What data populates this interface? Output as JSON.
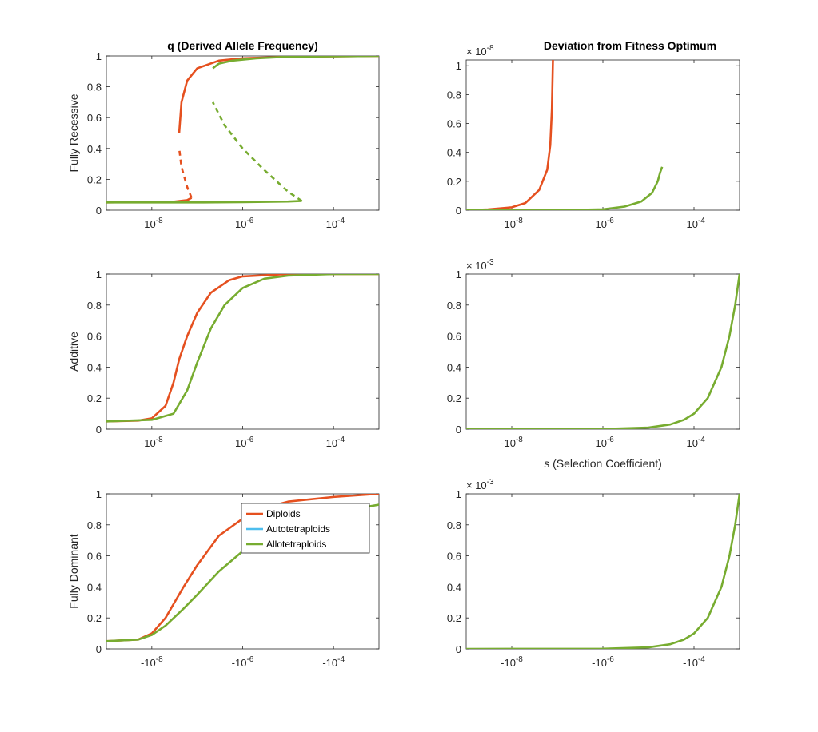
{
  "colors": {
    "diploids": "#e5501f",
    "autotetraploids": "#4dbeee",
    "allotetraploids": "#77ac30"
  },
  "chart_data": [
    {
      "type": "line",
      "panel": "left-row1",
      "title": "q (Derived Allele Frequency)",
      "ylabel": "Fully Recessive",
      "x_scale": "symlog-negative",
      "xlim": [
        -1e-09,
        -0.001
      ],
      "ylim": [
        0,
        1
      ],
      "xticks": [
        -1e-08,
        -1e-06,
        -0.0001
      ],
      "xtick_labels": [
        "-10",
        "-10",
        "-10"
      ],
      "xtick_exp": [
        "-8",
        "-6",
        "-4"
      ],
      "yticks": [
        0,
        0.2,
        0.4,
        0.6,
        0.8,
        1
      ],
      "ytick_labels": [
        "0",
        "0.2",
        "0.4",
        "0.6",
        "0.8",
        "1"
      ],
      "series": [
        {
          "name": "Diploids",
          "color": "#e5501f",
          "style": "solid",
          "points": [
            [
              -1e-09,
              0.05
            ],
            [
              -3e-08,
              0.055
            ],
            [
              -6e-08,
              0.065
            ],
            [
              -7.5e-08,
              0.08
            ]
          ]
        },
        {
          "name": "Diploids",
          "color": "#e5501f",
          "style": "dashed",
          "points": [
            [
              -7.5e-08,
              0.08
            ],
            [
              -6e-08,
              0.15
            ],
            [
              -4.5e-08,
              0.28
            ],
            [
              -4e-08,
              0.4
            ]
          ]
        },
        {
          "name": "Diploids",
          "color": "#e5501f",
          "style": "solid",
          "points": [
            [
              -4e-08,
              0.5
            ],
            [
              -4.5e-08,
              0.7
            ],
            [
              -6e-08,
              0.84
            ],
            [
              -1e-07,
              0.92
            ],
            [
              -3e-07,
              0.97
            ],
            [
              -1e-06,
              0.985
            ],
            [
              -1e-05,
              0.995
            ],
            [
              -0.001,
              1.0
            ]
          ]
        },
        {
          "name": "Allotetraploids",
          "color": "#77ac30",
          "style": "solid",
          "points": [
            [
              -1e-09,
              0.05
            ],
            [
              -1e-07,
              0.05
            ],
            [
              -1e-06,
              0.052
            ],
            [
              -1e-05,
              0.056
            ],
            [
              -2e-05,
              0.06
            ]
          ]
        },
        {
          "name": "Allotetraploids",
          "color": "#77ac30",
          "style": "dashed",
          "points": [
            [
              -2e-05,
              0.06
            ],
            [
              -1e-05,
              0.12
            ],
            [
              -3e-06,
              0.26
            ],
            [
              -1e-06,
              0.4
            ],
            [
              -4e-07,
              0.55
            ],
            [
              -2.2e-07,
              0.7
            ]
          ]
        },
        {
          "name": "Allotetraploids",
          "color": "#77ac30",
          "style": "solid",
          "points": [
            [
              -2.2e-07,
              0.92
            ],
            [
              -3e-07,
              0.95
            ],
            [
              -6e-07,
              0.97
            ],
            [
              -2e-06,
              0.985
            ],
            [
              -1e-05,
              0.995
            ],
            [
              -0.001,
              1.0
            ]
          ]
        }
      ]
    },
    {
      "type": "line",
      "panel": "right-row1",
      "title": "Deviation from Fitness Optimum",
      "ylabel": "",
      "x_scale": "symlog-negative",
      "xlim": [
        -1e-09,
        -0.001
      ],
      "ylim": [
        0,
        1.04
      ],
      "y_multiplier": "× 10",
      "y_multiplier_exp": "-8",
      "xticks": [
        -1e-08,
        -1e-06,
        -0.0001
      ],
      "xtick_labels": [
        "-10",
        "-10",
        "-10"
      ],
      "xtick_exp": [
        "-8",
        "-6",
        "-4"
      ],
      "yticks": [
        0,
        0.2,
        0.4,
        0.6,
        0.8,
        1
      ],
      "ytick_labels": [
        "0",
        "0.2",
        "0.4",
        "0.6",
        "0.8",
        "1"
      ],
      "series": [
        {
          "name": "Diploids",
          "color": "#e5501f",
          "style": "solid",
          "points": [
            [
              -1e-09,
              0.0
            ],
            [
              -3e-09,
              0.005
            ],
            [
              -1e-08,
              0.02
            ],
            [
              -2e-08,
              0.05
            ],
            [
              -4e-08,
              0.14
            ],
            [
              -6e-08,
              0.28
            ],
            [
              -7e-08,
              0.45
            ],
            [
              -7.6e-08,
              0.7
            ],
            [
              -8e-08,
              1.04
            ]
          ]
        },
        {
          "name": "Allotetraploids",
          "color": "#77ac30",
          "style": "solid",
          "points": [
            [
              -1e-09,
              0.0
            ],
            [
              -1e-07,
              0.0
            ],
            [
              -1e-06,
              0.006
            ],
            [
              -3e-06,
              0.025
            ],
            [
              -7e-06,
              0.06
            ],
            [
              -1.2e-05,
              0.12
            ],
            [
              -1.6e-05,
              0.2
            ],
            [
              -1.8e-05,
              0.26
            ],
            [
              -2e-05,
              0.3
            ]
          ]
        }
      ]
    },
    {
      "type": "line",
      "panel": "left-row2",
      "title": "",
      "ylabel": "Additive",
      "x_scale": "symlog-negative",
      "xlim": [
        -1e-09,
        -0.001
      ],
      "ylim": [
        0,
        1
      ],
      "xticks": [
        -1e-08,
        -1e-06,
        -0.0001
      ],
      "xtick_labels": [
        "-10",
        "-10",
        "-10"
      ],
      "xtick_exp": [
        "-8",
        "-6",
        "-4"
      ],
      "yticks": [
        0,
        0.2,
        0.4,
        0.6,
        0.8,
        1
      ],
      "ytick_labels": [
        "0",
        "0.2",
        "0.4",
        "0.6",
        "0.8",
        "1"
      ],
      "series": [
        {
          "name": "Diploids",
          "color": "#e5501f",
          "style": "solid",
          "points": [
            [
              -1e-09,
              0.05
            ],
            [
              -5e-09,
              0.055
            ],
            [
              -1e-08,
              0.07
            ],
            [
              -2e-08,
              0.15
            ],
            [
              -3e-08,
              0.3
            ],
            [
              -4e-08,
              0.45
            ],
            [
              -6e-08,
              0.6
            ],
            [
              -1e-07,
              0.75
            ],
            [
              -2e-07,
              0.88
            ],
            [
              -5e-07,
              0.96
            ],
            [
              -1e-06,
              0.985
            ],
            [
              -1e-05,
              1.0
            ],
            [
              -0.001,
              1.0
            ]
          ]
        },
        {
          "name": "Allotetraploids",
          "color": "#77ac30",
          "style": "solid",
          "points": [
            [
              -1e-09,
              0.05
            ],
            [
              -1e-08,
              0.06
            ],
            [
              -3e-08,
              0.1
            ],
            [
              -6e-08,
              0.25
            ],
            [
              -1e-07,
              0.43
            ],
            [
              -2e-07,
              0.65
            ],
            [
              -4e-07,
              0.8
            ],
            [
              -1e-06,
              0.91
            ],
            [
              -3e-06,
              0.97
            ],
            [
              -1e-05,
              0.99
            ],
            [
              -0.0001,
              1.0
            ],
            [
              -0.001,
              1.0
            ]
          ]
        }
      ]
    },
    {
      "type": "line",
      "panel": "right-row2",
      "title": "",
      "ylabel": "",
      "xlabel": "s (Selection Coefficient)",
      "x_scale": "symlog-negative",
      "xlim": [
        -1e-09,
        -0.001
      ],
      "ylim": [
        0,
        1
      ],
      "y_multiplier": "× 10",
      "y_multiplier_exp": "-3",
      "xticks": [
        -1e-08,
        -1e-06,
        -0.0001
      ],
      "xtick_labels": [
        "-10",
        "-10",
        "-10"
      ],
      "xtick_exp": [
        "-8",
        "-6",
        "-4"
      ],
      "yticks": [
        0,
        0.2,
        0.4,
        0.6,
        0.8,
        1
      ],
      "ytick_labels": [
        "0",
        "0.2",
        "0.4",
        "0.6",
        "0.8",
        "1"
      ],
      "series": [
        {
          "name": "Allotetraploids",
          "color": "#77ac30",
          "style": "solid",
          "points": [
            [
              -1e-09,
              0.0
            ],
            [
              -1e-06,
              0.001
            ],
            [
              -1e-05,
              0.01
            ],
            [
              -3e-05,
              0.03
            ],
            [
              -6e-05,
              0.06
            ],
            [
              -0.0001,
              0.1
            ],
            [
              -0.0002,
              0.2
            ],
            [
              -0.0004,
              0.4
            ],
            [
              -0.0006,
              0.6
            ],
            [
              -0.0008,
              0.8
            ],
            [
              -0.001,
              1.0
            ]
          ]
        }
      ]
    },
    {
      "type": "line",
      "panel": "left-row3",
      "title": "",
      "ylabel": "Fully Dominant",
      "x_scale": "symlog-negative",
      "xlim": [
        -1e-09,
        -0.001
      ],
      "ylim": [
        0,
        1
      ],
      "xticks": [
        -1e-08,
        -1e-06,
        -0.0001
      ],
      "xtick_labels": [
        "-10",
        "-10",
        "-10"
      ],
      "xtick_exp": [
        "-8",
        "-6",
        "-4"
      ],
      "yticks": [
        0,
        0.2,
        0.4,
        0.6,
        0.8,
        1
      ],
      "ytick_labels": [
        "0",
        "0.2",
        "0.4",
        "0.6",
        "0.8",
        "1"
      ],
      "legend": {
        "location": "north-east",
        "entries": [
          {
            "name": "Diploids",
            "color": "#e5501f"
          },
          {
            "name": "Autotetraploids",
            "color": "#4dbeee"
          },
          {
            "name": "Allotetraploids",
            "color": "#77ac30"
          }
        ]
      },
      "series": [
        {
          "name": "Diploids",
          "color": "#e5501f",
          "style": "solid",
          "points": [
            [
              -1e-09,
              0.05
            ],
            [
              -5e-09,
              0.06
            ],
            [
              -1e-08,
              0.1
            ],
            [
              -2e-08,
              0.2
            ],
            [
              -5e-08,
              0.4
            ],
            [
              -1e-07,
              0.54
            ],
            [
              -3e-07,
              0.73
            ],
            [
              -1e-06,
              0.84
            ],
            [
              -3e-06,
              0.91
            ],
            [
              -1e-05,
              0.95
            ],
            [
              -0.0001,
              0.98
            ],
            [
              -0.001,
              1.0
            ]
          ]
        },
        {
          "name": "Allotetraploids",
          "color": "#77ac30",
          "style": "solid",
          "points": [
            [
              -1e-09,
              0.05
            ],
            [
              -5e-09,
              0.06
            ],
            [
              -1e-08,
              0.09
            ],
            [
              -2e-08,
              0.15
            ],
            [
              -5e-08,
              0.26
            ],
            [
              -1e-07,
              0.35
            ],
            [
              -3e-07,
              0.5
            ],
            [
              -1e-06,
              0.63
            ],
            [
              -3e-06,
              0.72
            ],
            [
              -1e-05,
              0.8
            ],
            [
              -0.0001,
              0.88
            ],
            [
              -0.001,
              0.93
            ]
          ]
        }
      ]
    },
    {
      "type": "line",
      "panel": "right-row3",
      "title": "",
      "ylabel": "",
      "x_scale": "symlog-negative",
      "xlim": [
        -1e-09,
        -0.001
      ],
      "ylim": [
        0,
        1
      ],
      "y_multiplier": "× 10",
      "y_multiplier_exp": "-3",
      "xticks": [
        -1e-08,
        -1e-06,
        -0.0001
      ],
      "xtick_labels": [
        "-10",
        "-10",
        "-10"
      ],
      "xtick_exp": [
        "-8",
        "-6",
        "-4"
      ],
      "yticks": [
        0,
        0.2,
        0.4,
        0.6,
        0.8,
        1
      ],
      "ytick_labels": [
        "0",
        "0.2",
        "0.4",
        "0.6",
        "0.8",
        "1"
      ],
      "series": [
        {
          "name": "Allotetraploids",
          "color": "#77ac30",
          "style": "solid",
          "points": [
            [
              -1e-09,
              0.0
            ],
            [
              -1e-06,
              0.001
            ],
            [
              -1e-05,
              0.01
            ],
            [
              -3e-05,
              0.03
            ],
            [
              -6e-05,
              0.06
            ],
            [
              -0.0001,
              0.1
            ],
            [
              -0.0002,
              0.2
            ],
            [
              -0.0004,
              0.4
            ],
            [
              -0.0006,
              0.6
            ],
            [
              -0.0008,
              0.8
            ],
            [
              -0.001,
              1.0
            ]
          ]
        }
      ]
    }
  ]
}
